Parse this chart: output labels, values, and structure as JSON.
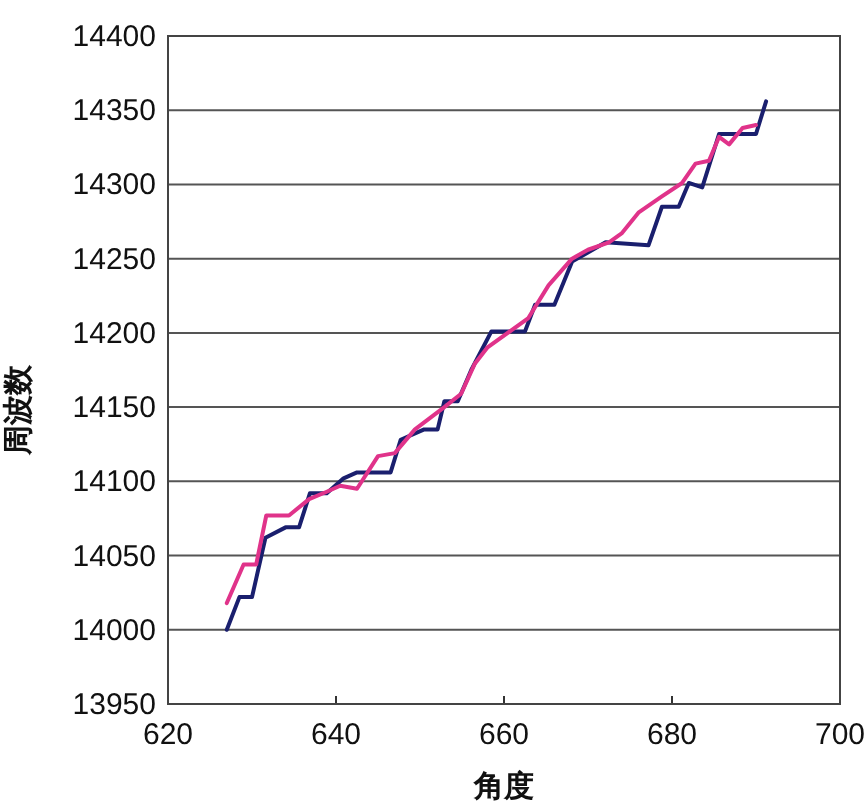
{
  "chart_data": {
    "type": "line",
    "xlabel": "角度",
    "ylabel": "周波数",
    "xlim": [
      620,
      700
    ],
    "xticks": [
      620,
      640,
      660,
      680,
      700
    ],
    "ylim": [
      13950,
      14400
    ],
    "yticks": [
      13950,
      14000,
      14050,
      14100,
      14150,
      14200,
      14250,
      14300,
      14350,
      14400
    ],
    "grid": "y",
    "marker": "none",
    "line_style": "solid",
    "series": [
      {
        "color": "#1a1f6e",
        "x": [
          627,
          628.5,
          630,
          631.6,
          634,
          635.6,
          636.9,
          638.9,
          640.9,
          642.5,
          646.5,
          647.7,
          650.5,
          652.1,
          652.9,
          654.5,
          656.1,
          657.3,
          658.5,
          662.5,
          663.7,
          666,
          668.1,
          672.1,
          677.2,
          678.8,
          680.8,
          682,
          683.6,
          685.6,
          688.4,
          690,
          691.2
        ],
        "values": [
          14000,
          14022,
          14022,
          14062,
          14069,
          14069,
          14092,
          14092,
          14102,
          14106,
          14106,
          14128,
          14135,
          14135,
          14154,
          14154,
          14175,
          14188,
          14201,
          14201,
          14219,
          14219,
          14248,
          14261,
          14259,
          14285,
          14285,
          14301,
          14298,
          14334,
          14334,
          14334,
          14356
        ]
      },
      {
        "color": "#e0338a",
        "x": [
          627,
          629,
          630.5,
          631.7,
          634.4,
          636.8,
          638.9,
          640.5,
          642.5,
          645,
          647,
          649.4,
          652.9,
          654.9,
          656.5,
          658,
          662.9,
          665.3,
          668.1,
          670,
          672.5,
          674,
          676,
          678.8,
          681.2,
          682.8,
          684.4,
          685.6,
          686.8,
          688.4,
          690
        ],
        "values": [
          14018,
          14044,
          14044,
          14077,
          14077,
          14088,
          14093,
          14097,
          14095,
          14117,
          14119,
          14135,
          14150,
          14159,
          14179,
          14190,
          14210,
          14232,
          14250,
          14256,
          14261,
          14267,
          14281,
          14292,
          14301,
          14314,
          14316,
          14332,
          14327,
          14338,
          14340
        ]
      }
    ]
  }
}
